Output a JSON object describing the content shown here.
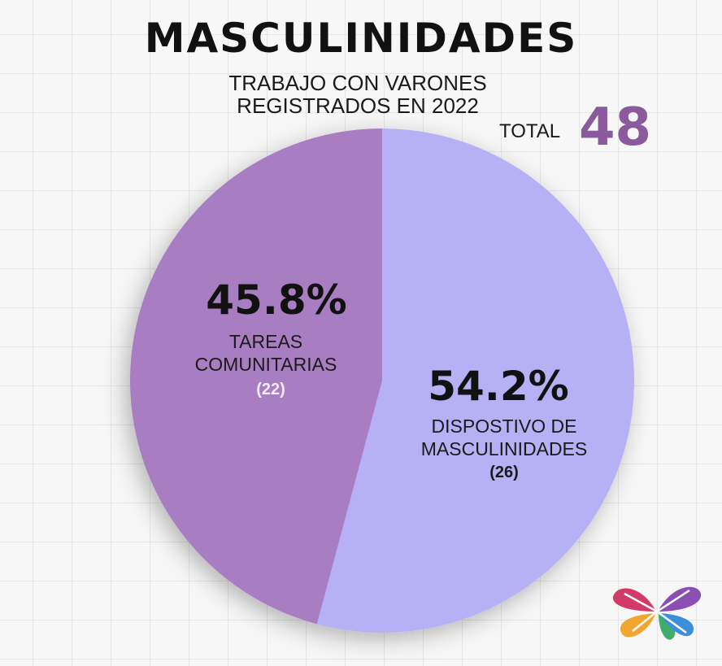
{
  "title": "MASCULINIDADES",
  "subtitle_line1": "TRABAJO CON VARONES",
  "subtitle_line2": "REGISTRADOS EN 2022",
  "total_label": "TOTAL",
  "total_value": "48",
  "chart_data": {
    "type": "pie",
    "total": 48,
    "slices": [
      {
        "label_line1": "TAREAS",
        "label_line2": "COMUNITARIAS",
        "percent_label": "45.8%",
        "count_label": "(22)",
        "value": 22,
        "color": "#a97dc2"
      },
      {
        "label_line1": "DISPOSTIVO DE",
        "label_line2": "MASCULINIDADES",
        "percent_label": "54.2%",
        "count_label": "(26)",
        "value": 26,
        "color": "#b6b0f5"
      }
    ]
  },
  "logo": {
    "name": "butterfly-logo",
    "colors": [
      "#d23a6a",
      "#8a4fb0",
      "#f3a531",
      "#3fae6a",
      "#3c8fd8"
    ]
  }
}
